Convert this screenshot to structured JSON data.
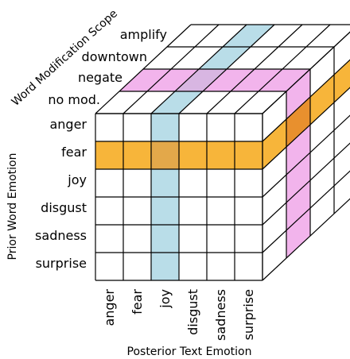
{
  "diagram": {
    "x_axis_title": "Posterior Text Emotion",
    "y_axis_title": "Prior Word Emotion",
    "z_axis_title": "Word Modification Scope",
    "x_labels": [
      "anger",
      "fear",
      "joy",
      "disgust",
      "sadness",
      "surprise"
    ],
    "y_labels": [
      "anger",
      "fear",
      "joy",
      "disgust",
      "sadness",
      "surprise"
    ],
    "z_labels": [
      "no mod.",
      "negate",
      "downtown",
      "amplify"
    ],
    "highlights": {
      "prior_row": {
        "label": "fear",
        "color": "#f7b53a"
      },
      "posterior_column": {
        "label": "joy",
        "color": "#b9dde8"
      },
      "scope_layer": {
        "label": "negate",
        "color": "#f2b4ec"
      }
    }
  }
}
